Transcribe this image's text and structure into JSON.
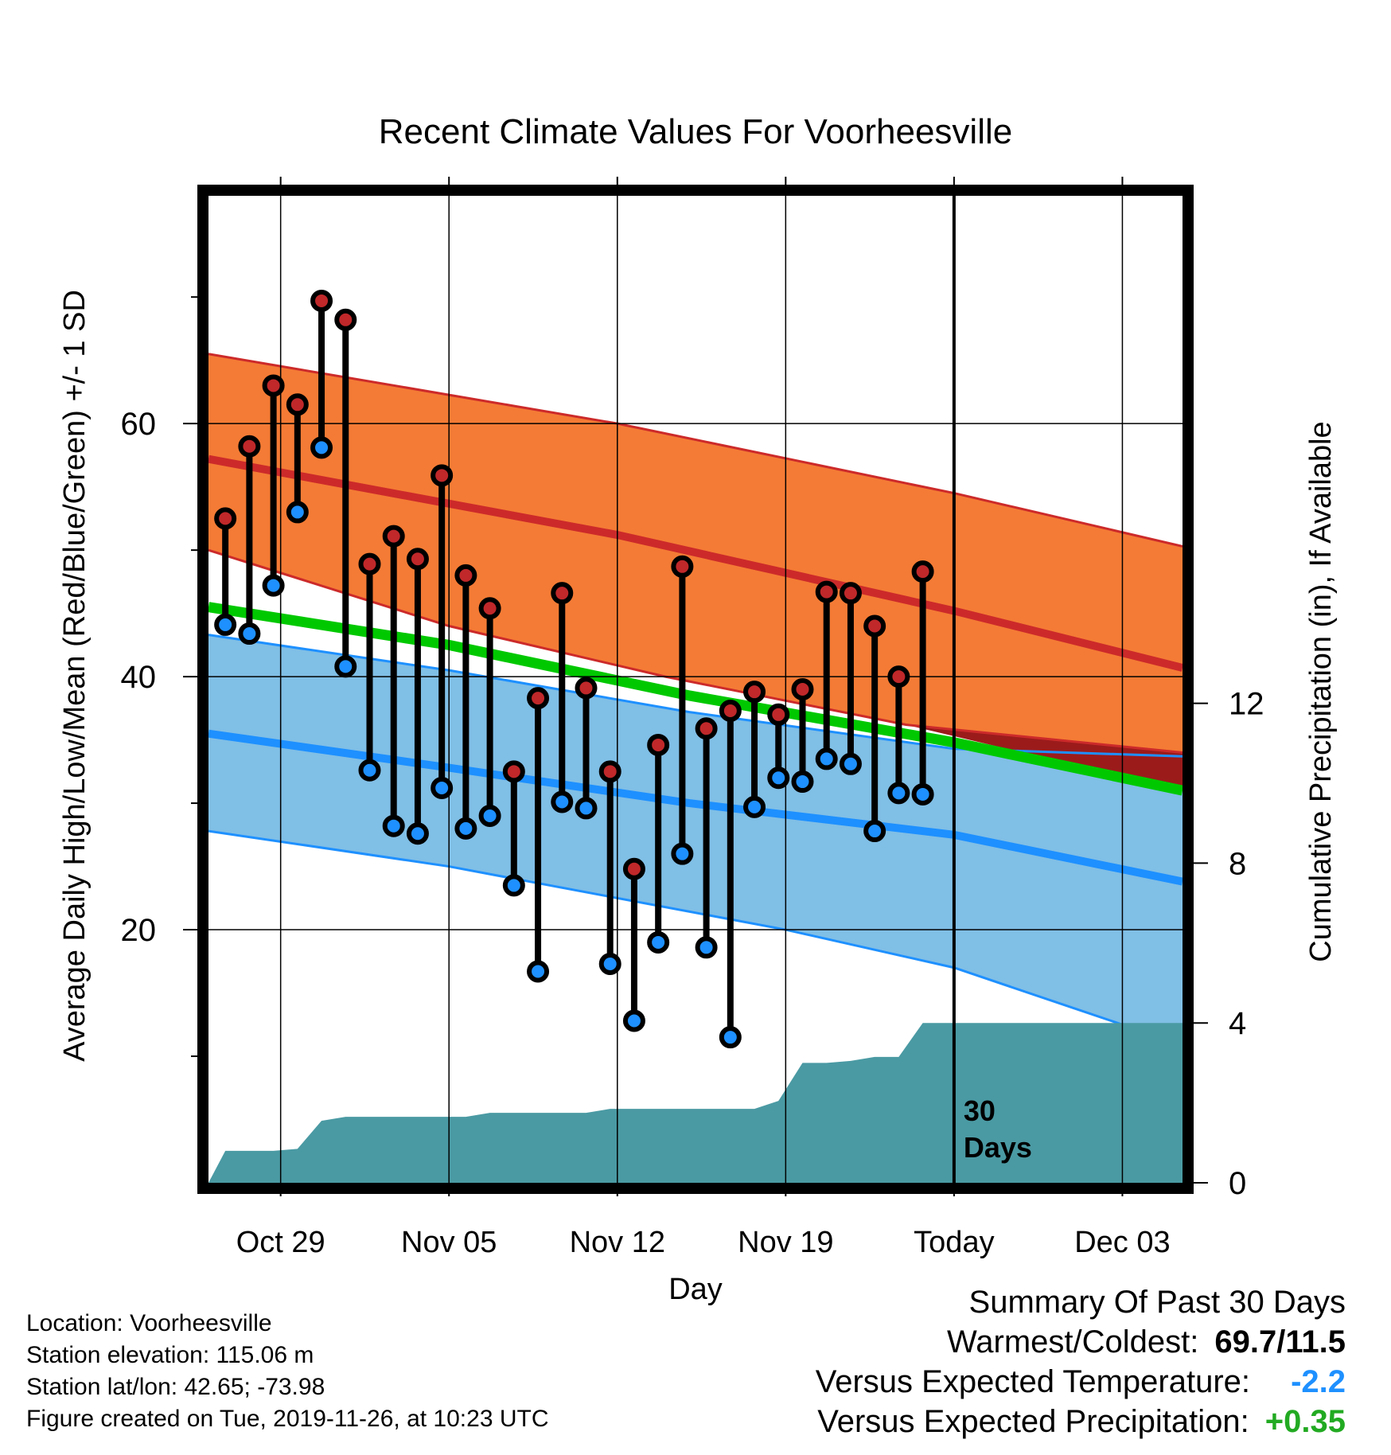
{
  "chart_data": {
    "type": "line",
    "title": "Recent Climate Values For Voorheesville",
    "xlabel": "Day",
    "ylabel": "Average Daily High/Low/Mean (Red/Blue/Green) +/- 1 SD",
    "y2label": "Cumulative Precipitation (in), If Available",
    "x_ticks": [
      "Oct 29",
      "Nov 05",
      "Nov 12",
      "Nov 19",
      "Today",
      "Dec 03"
    ],
    "x_tick_days": [
      3,
      10,
      17,
      24,
      31,
      38
    ],
    "xlim": [
      0,
      40.5
    ],
    "y_ticks": [
      20,
      40,
      60
    ],
    "ylim": [
      0,
      78
    ],
    "y2_ticks": [
      0,
      4,
      8,
      12
    ],
    "y2lim": [
      0,
      24.7
    ],
    "today_day": 31,
    "today_label": [
      "30",
      "Days"
    ],
    "normals": {
      "high_upper": [
        [
          0,
          65.5
        ],
        [
          17,
          60
        ],
        [
          31,
          54.5
        ],
        [
          40.5,
          50.3
        ]
      ],
      "high_mean": [
        [
          0,
          57.2
        ],
        [
          17,
          51.2
        ],
        [
          31,
          45.2
        ],
        [
          40.5,
          40.7
        ]
      ],
      "high_lower": [
        [
          0,
          50.0
        ],
        [
          10,
          44
        ],
        [
          19,
          40
        ],
        [
          29,
          36.2
        ],
        [
          40.5,
          34.0
        ]
      ],
      "mean": [
        [
          0,
          45.5
        ],
        [
          10,
          42.5
        ],
        [
          20,
          38.5
        ],
        [
          31,
          34.8
        ],
        [
          40.5,
          31.0
        ]
      ],
      "low_upper": [
        [
          0,
          43.3
        ],
        [
          10,
          40.5
        ],
        [
          20,
          37.2
        ],
        [
          31,
          34.3
        ],
        [
          40.5,
          33.7
        ]
      ],
      "low_mean": [
        [
          0,
          35.5
        ],
        [
          10,
          32.8
        ],
        [
          20,
          30
        ],
        [
          31,
          27.5
        ],
        [
          40.5,
          23.8
        ]
      ],
      "low_lower": [
        [
          0,
          27.8
        ],
        [
          10,
          25.0
        ],
        [
          24,
          20.0
        ],
        [
          31,
          17.0
        ],
        [
          38,
          12.5
        ],
        [
          40.5,
          12.5
        ]
      ]
    },
    "series": [
      {
        "name": "High",
        "color": "#c0282a",
        "days": [
          0.7,
          1.7,
          2.7,
          3.7,
          4.7,
          5.7,
          6.7,
          7.7,
          8.7,
          9.7,
          10.7,
          11.7,
          12.7,
          13.7,
          14.7,
          15.7,
          16.7,
          17.7,
          18.7,
          19.7,
          20.7,
          21.7,
          22.7,
          23.7,
          24.7,
          25.7,
          26.7,
          27.7,
          28.7,
          29.7
        ],
        "values": [
          52.5,
          58.2,
          63.0,
          61.5,
          69.7,
          68.2,
          48.9,
          51.1,
          49.3,
          55.9,
          48.0,
          45.4,
          32.5,
          38.3,
          46.6,
          39.1,
          32.5,
          24.8,
          34.6,
          48.7,
          35.9,
          37.3,
          38.8,
          37.0,
          39.0,
          46.7,
          46.6,
          44.0,
          40.0,
          48.3
        ]
      },
      {
        "name": "Low",
        "color": "#1e90ff",
        "days": [
          0.7,
          1.7,
          2.7,
          3.7,
          4.7,
          5.7,
          6.7,
          7.7,
          8.7,
          9.7,
          10.7,
          11.7,
          12.7,
          13.7,
          14.7,
          15.7,
          16.7,
          17.7,
          18.7,
          19.7,
          20.7,
          21.7,
          22.7,
          23.7,
          24.7,
          25.7,
          26.7,
          27.7,
          28.7,
          29.7
        ],
        "values": [
          44.1,
          43.4,
          47.2,
          53.0,
          58.1,
          40.8,
          32.6,
          28.2,
          27.6,
          31.2,
          28.0,
          29.0,
          23.5,
          16.7,
          30.1,
          29.6,
          17.3,
          12.8,
          19.0,
          26.0,
          18.6,
          11.5,
          29.7,
          32.0,
          31.7,
          33.5,
          33.1,
          27.8,
          30.8,
          30.7
        ]
      }
    ],
    "precip_cumulative": {
      "name": "Cumulative Precipitation",
      "color": "#4a9aa3",
      "points": [
        [
          0,
          0
        ],
        [
          0.7,
          0.8
        ],
        [
          1.7,
          0.8
        ],
        [
          2.7,
          0.8
        ],
        [
          3.7,
          0.85
        ],
        [
          4.7,
          1.55
        ],
        [
          5.7,
          1.65
        ],
        [
          7.7,
          1.65
        ],
        [
          9.7,
          1.65
        ],
        [
          10.7,
          1.65
        ],
        [
          11.7,
          1.75
        ],
        [
          15.7,
          1.75
        ],
        [
          16.7,
          1.85
        ],
        [
          22.7,
          1.85
        ],
        [
          23.7,
          2.05
        ],
        [
          24.7,
          3.0
        ],
        [
          25.7,
          3.0
        ],
        [
          26.7,
          3.05
        ],
        [
          27.7,
          3.15
        ],
        [
          28.7,
          3.15
        ],
        [
          29.7,
          4.0
        ],
        [
          40.5,
          4.0
        ]
      ]
    },
    "grid": true,
    "legend": "none"
  },
  "info": {
    "location": "Location: Voorheesville",
    "elevation": "Station elevation: 115.06 m",
    "latlon": "Station lat/lon: 42.65; -73.98",
    "created": "Figure created on Tue, 2019-11-26, at 10:23 UTC"
  },
  "summary": {
    "title": "Summary Of Past 30 Days",
    "warmest_label": "Warmest/Coldest:",
    "warmest_value": "69.7/11.5",
    "temp_label": "Versus Expected Temperature:",
    "temp_value": "-2.2",
    "temp_color": "#1e90ff",
    "precip_label": "Versus Expected Precipitation:",
    "precip_value": "+0.35",
    "precip_color": "#22aa22"
  },
  "colors": {
    "high_band": "#f47b35",
    "high_line": "#cc2a2a",
    "low_band": "#80bfe6",
    "low_line": "#1e90ff",
    "mean_line": "#00c800",
    "overlap": "#9b1b1b",
    "precip": "#4a9aa3"
  }
}
